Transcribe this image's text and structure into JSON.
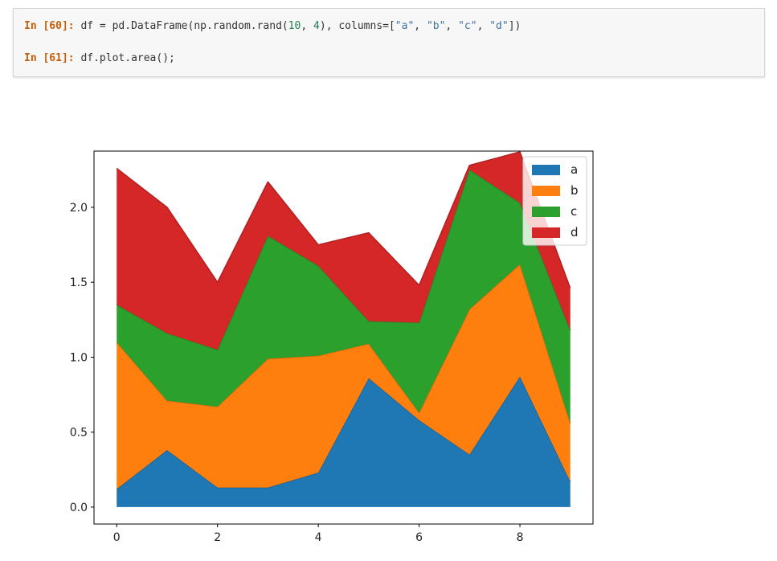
{
  "cells": [
    {
      "prompt": "In [60]:",
      "tokens": [
        {
          "text": " df = pd.DataFrame(np.random.rand(",
          "kind": "plain"
        },
        {
          "text": "10",
          "kind": "num"
        },
        {
          "text": ", ",
          "kind": "plain"
        },
        {
          "text": "4",
          "kind": "num"
        },
        {
          "text": "), columns=[",
          "kind": "plain"
        },
        {
          "text": "\"a\"",
          "kind": "str"
        },
        {
          "text": ", ",
          "kind": "plain"
        },
        {
          "text": "\"b\"",
          "kind": "str"
        },
        {
          "text": ", ",
          "kind": "plain"
        },
        {
          "text": "\"c\"",
          "kind": "str"
        },
        {
          "text": ", ",
          "kind": "plain"
        },
        {
          "text": "\"d\"",
          "kind": "str"
        },
        {
          "text": "])",
          "kind": "plain"
        }
      ]
    },
    {
      "prompt": "In [61]:",
      "tokens": [
        {
          "text": " df.plot.area();",
          "kind": "plain"
        }
      ]
    }
  ],
  "chart_data": {
    "type": "area",
    "stacked": true,
    "x": [
      0,
      1,
      2,
      3,
      4,
      5,
      6,
      7,
      8,
      9
    ],
    "xticks": [
      0,
      2,
      4,
      6,
      8
    ],
    "yticks": [
      0.0,
      0.5,
      1.0,
      1.5,
      2.0
    ],
    "ytick_labels": [
      "0.0",
      "0.5",
      "1.0",
      "1.5",
      "2.0"
    ],
    "xlim": [
      -0.45,
      9.45
    ],
    "ylim": [
      -0.113,
      2.375
    ],
    "legend_position": "top-right",
    "series": [
      {
        "name": "a",
        "color": "#1f77b4",
        "values": [
          0.12,
          0.38,
          0.13,
          0.13,
          0.23,
          0.86,
          0.58,
          0.35,
          0.87,
          0.17
        ]
      },
      {
        "name": "b",
        "color": "#ff7f0e",
        "values": [
          0.98,
          0.33,
          0.54,
          0.86,
          0.78,
          0.23,
          0.05,
          0.97,
          0.75,
          0.39
        ]
      },
      {
        "name": "c",
        "color": "#2ca02c",
        "values": [
          0.25,
          0.45,
          0.38,
          0.82,
          0.6,
          0.15,
          0.6,
          0.93,
          0.41,
          0.62
        ]
      },
      {
        "name": "d",
        "color": "#d62728",
        "values": [
          0.91,
          0.84,
          0.45,
          0.36,
          0.14,
          0.59,
          0.25,
          0.03,
          0.34,
          0.28
        ]
      }
    ]
  }
}
